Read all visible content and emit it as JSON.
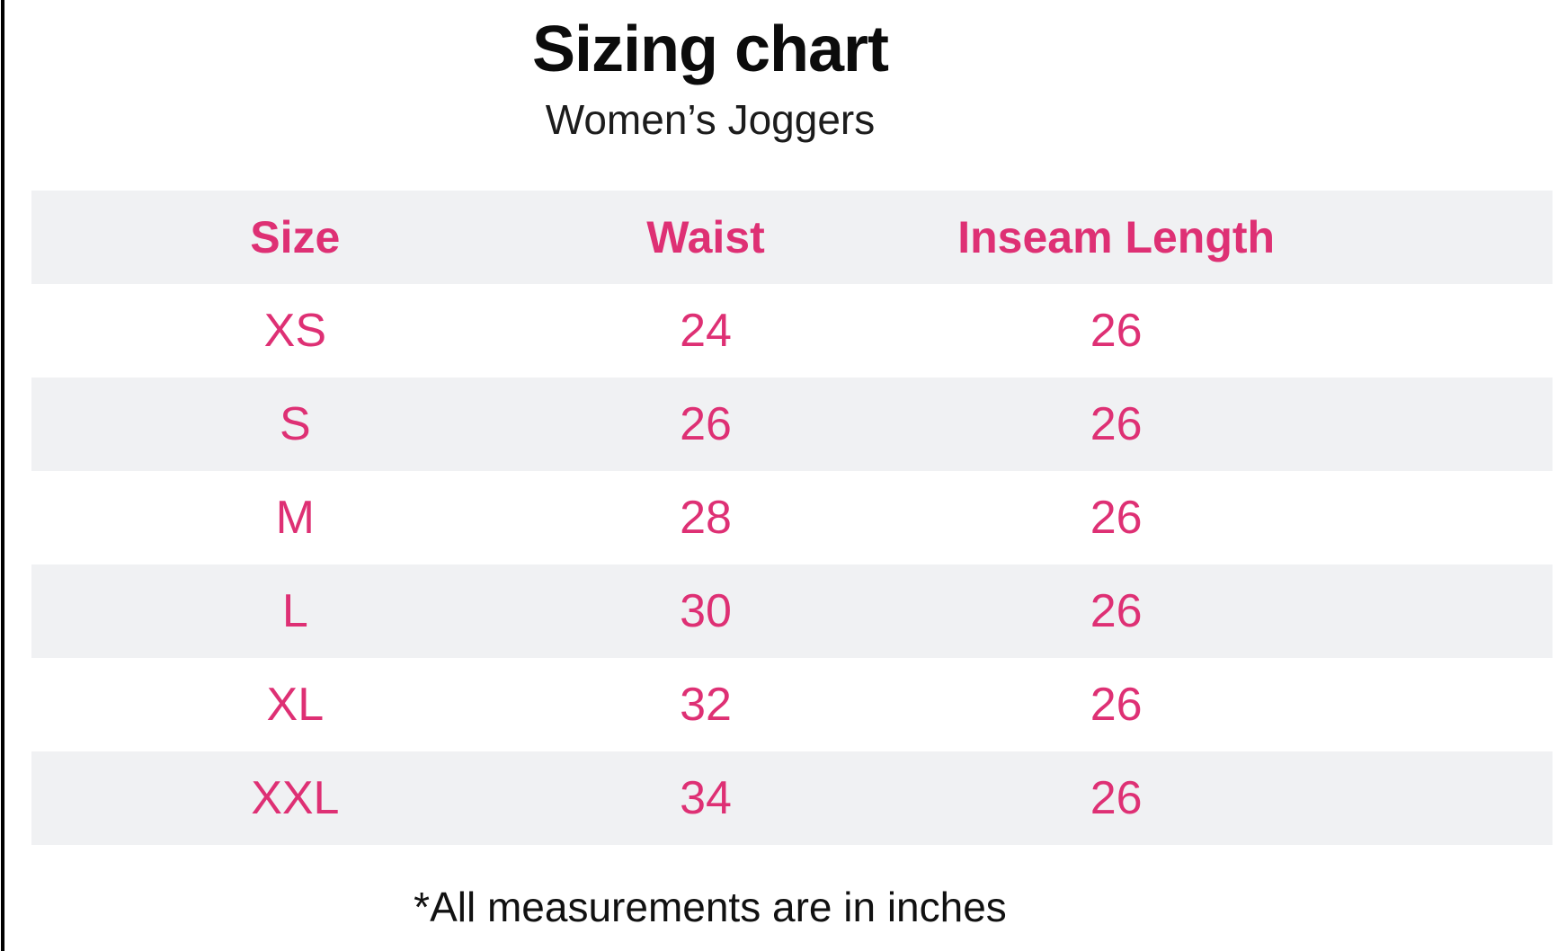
{
  "title": "Sizing chart",
  "subtitle": "Women’s Joggers",
  "footnote": "*All measurements are in inches",
  "colors": {
    "accent_pink": "#de3074",
    "row_stripe_gray": "#f0f1f3",
    "text_black": "#111111",
    "edge_border_black": "#000000"
  },
  "chart_data": {
    "type": "table",
    "title": "Sizing chart",
    "subtitle": "Women’s Joggers",
    "columns": [
      "Size",
      "Waist",
      "Inseam Length"
    ],
    "rows": [
      [
        "XS",
        "24",
        "26"
      ],
      [
        "S",
        "26",
        "26"
      ],
      [
        "M",
        "28",
        "26"
      ],
      [
        "L",
        "30",
        "26"
      ],
      [
        "XL",
        "32",
        "26"
      ],
      [
        "XXL",
        "34",
        "26"
      ]
    ],
    "units_note": "*All measurements are in inches",
    "layout": {
      "stripe_pattern": "header and alternating rows shaded gray",
      "text_alignment": "center"
    }
  }
}
